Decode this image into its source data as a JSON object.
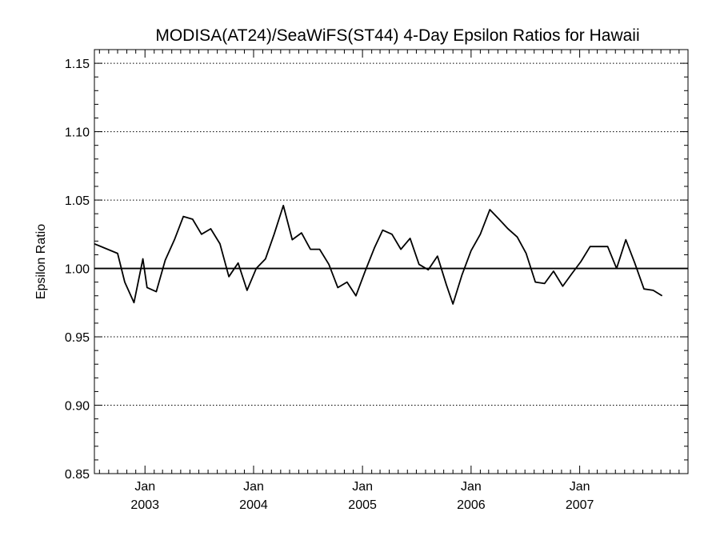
{
  "chart_data": {
    "type": "line",
    "title": "MODISA(AT24)/SeaWiFS(ST44) 4-Day Epsilon Ratios for Hawaii",
    "xlabel": "",
    "ylabel": "Epsilon Ratio",
    "ylim": [
      0.85,
      1.16
    ],
    "xlim": [
      "2002-07-15",
      "2007-12-31"
    ],
    "yticks": [
      "0.85",
      "0.90",
      "0.95",
      "1.00",
      "1.05",
      "1.10",
      "1.15"
    ],
    "xticks": [
      {
        "date": "2003-01-01",
        "month": "Jan",
        "year": "2003"
      },
      {
        "date": "2004-01-01",
        "month": "Jan",
        "year": "2004"
      },
      {
        "date": "2005-01-01",
        "month": "Jan",
        "year": "2005"
      },
      {
        "date": "2006-01-01",
        "month": "Jan",
        "year": "2006"
      },
      {
        "date": "2007-01-01",
        "month": "Jan",
        "year": "2007"
      }
    ],
    "grid": "dotted horizontal at major y ticks",
    "reference_line": 1.0,
    "series": [
      {
        "name": "",
        "points": [
          [
            "2002-07-15",
            1.018
          ],
          [
            "2002-10-01",
            1.011
          ],
          [
            "2002-10-25",
            0.99
          ],
          [
            "2002-11-25",
            0.975
          ],
          [
            "2002-12-25",
            1.007
          ],
          [
            "2003-01-08",
            0.986
          ],
          [
            "2003-02-08",
            0.983
          ],
          [
            "2003-03-10",
            1.006
          ],
          [
            "2003-04-10",
            1.021
          ],
          [
            "2003-05-10",
            1.038
          ],
          [
            "2003-06-10",
            1.036
          ],
          [
            "2003-07-10",
            1.025
          ],
          [
            "2003-08-10",
            1.029
          ],
          [
            "2003-09-10",
            1.018
          ],
          [
            "2003-10-10",
            0.994
          ],
          [
            "2003-11-10",
            1.004
          ],
          [
            "2003-12-10",
            0.984
          ],
          [
            "2004-01-10",
            1.0
          ],
          [
            "2004-02-10",
            1.007
          ],
          [
            "2004-03-10",
            1.025
          ],
          [
            "2004-04-10",
            1.046
          ],
          [
            "2004-05-10",
            1.021
          ],
          [
            "2004-06-10",
            1.026
          ],
          [
            "2004-07-10",
            1.014
          ],
          [
            "2004-08-10",
            1.014
          ],
          [
            "2004-09-10",
            1.003
          ],
          [
            "2004-10-10",
            0.986
          ],
          [
            "2004-11-10",
            0.99
          ],
          [
            "2004-12-10",
            0.98
          ],
          [
            "2005-01-10",
            0.998
          ],
          [
            "2005-02-10",
            1.015
          ],
          [
            "2005-03-10",
            1.028
          ],
          [
            "2005-04-10",
            1.025
          ],
          [
            "2005-05-10",
            1.014
          ],
          [
            "2005-06-10",
            1.022
          ],
          [
            "2005-07-10",
            1.003
          ],
          [
            "2005-08-10",
            0.999
          ],
          [
            "2005-09-10",
            1.009
          ],
          [
            "2005-10-10",
            0.988
          ],
          [
            "2005-11-01",
            0.974
          ],
          [
            "2005-12-01",
            0.995
          ],
          [
            "2006-01-01",
            1.013
          ],
          [
            "2006-02-01",
            1.025
          ],
          [
            "2006-03-05",
            1.043
          ],
          [
            "2006-04-05",
            1.036
          ],
          [
            "2006-05-05",
            1.029
          ],
          [
            "2006-06-05",
            1.023
          ],
          [
            "2006-07-05",
            1.011
          ],
          [
            "2006-08-05",
            0.99
          ],
          [
            "2006-09-05",
            0.989
          ],
          [
            "2006-10-05",
            0.998
          ],
          [
            "2006-11-05",
            0.987
          ],
          [
            "2006-12-05",
            0.996
          ],
          [
            "2007-01-05",
            1.005
          ],
          [
            "2007-02-05",
            1.016
          ],
          [
            "2007-03-05",
            1.016
          ],
          [
            "2007-04-05",
            1.016
          ],
          [
            "2007-05-05",
            1.0
          ],
          [
            "2007-06-05",
            1.021
          ],
          [
            "2007-07-05",
            1.004
          ],
          [
            "2007-08-05",
            0.985
          ],
          [
            "2007-09-05",
            0.984
          ],
          [
            "2007-10-05",
            0.98
          ]
        ]
      }
    ]
  }
}
